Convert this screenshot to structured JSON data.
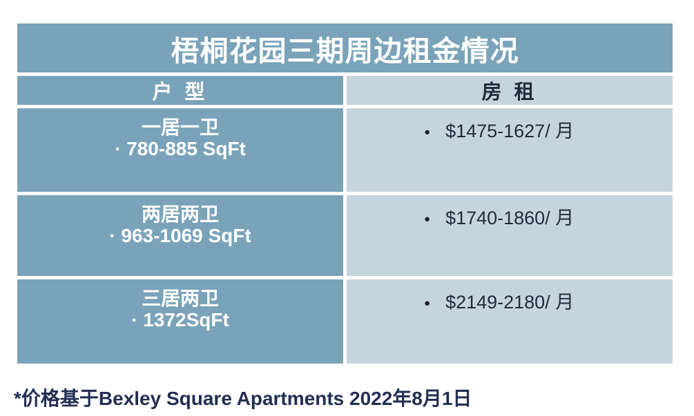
{
  "table": {
    "title": "梧桐花园三期周边租金情况",
    "columns": [
      {
        "label": "户 型"
      },
      {
        "label": "房 租"
      }
    ],
    "rows": [
      {
        "type": "一居一卫",
        "size": "· 780-885 SqFt",
        "rent": "$1475-1627/ 月"
      },
      {
        "type": "两居两卫",
        "size": "· 963-1069 SqFt",
        "rent": "$1740-1860/ 月"
      },
      {
        "type": "三居两卫",
        "size": "· 1372SqFt",
        "rent": "$2149-2180/ 月"
      }
    ]
  },
  "icons": {
    "bullet": "●"
  },
  "footnote": "*价格基于Bexley Square Apartments 2022年8月1日",
  "colors": {
    "header_blue": "#7aa3b9",
    "light_blue": "#c6d4de",
    "cell_text_dark": "#222b3a",
    "footnote_navy": "#232e52",
    "title_text": "#ffffff",
    "gap_white": "#ffffff"
  },
  "chart_data": {
    "type": "table",
    "title": "梧桐花园三期周边租金情况",
    "columns": [
      "户 型",
      "房 租"
    ],
    "cells": [
      [
        "一居一卫 · 780-885 SqFt",
        "$1475-1627/ 月"
      ],
      [
        "两居两卫 · 963-1069 SqFt",
        "$1740-1860/ 月"
      ],
      [
        "三居两卫 · 1372SqFt",
        "$2149-2180/ 月"
      ]
    ]
  }
}
